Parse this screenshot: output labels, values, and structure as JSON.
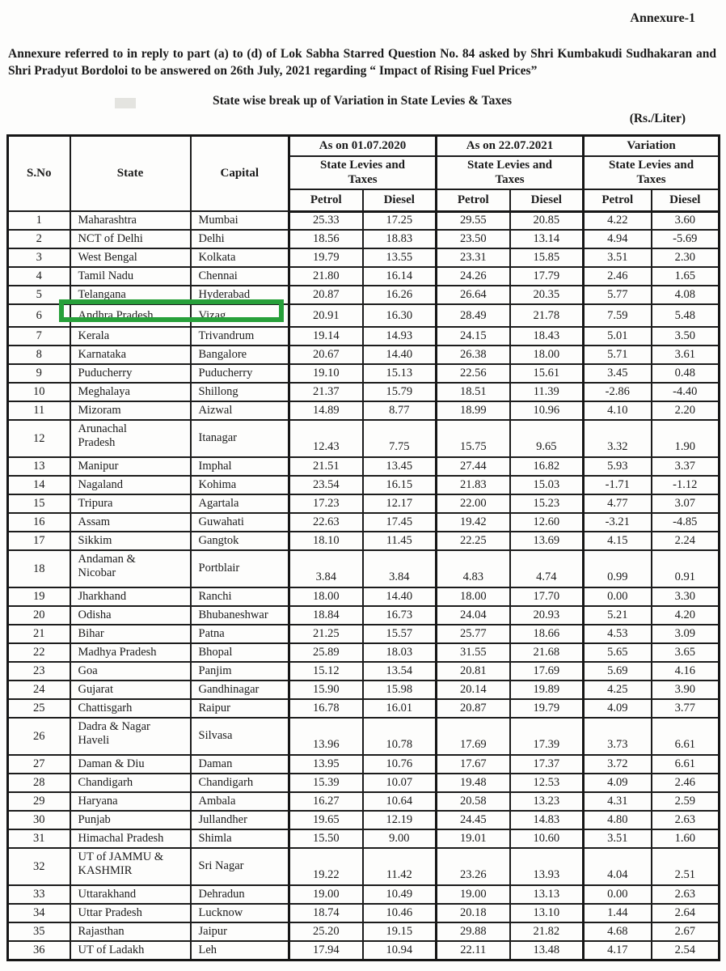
{
  "page": {
    "annexure_label": "Annexure-1",
    "intro": "Annexure referred to in reply to part (a) to (d) of Lok Sabha Starred Question No. 84 asked by Shri Kumbakudi Sudhakaran and Shri Pradyut Bordoloi to be answered on 26th July, 2021 regarding “ Impact of Rising Fuel Prices”",
    "title": "State wise break up of Variation in State Levies & Taxes",
    "unit_label": "(Rs./Liter)"
  },
  "table": {
    "columns": {
      "sno": "S.No",
      "state": "State",
      "capital": "Capital",
      "group_2020": "As on 01.07.2020",
      "group_2021": "As on 22.07.2021",
      "group_variation": "Variation",
      "subheader": "State Levies and\nTaxes",
      "petrol": "Petrol",
      "diesel": "Diesel"
    },
    "highlight": {
      "row_sno": "6",
      "color": "#27a03a"
    },
    "rows": [
      [
        "1",
        "Maharashtra",
        "Mumbai",
        "25.33",
        "17.25",
        "29.55",
        "20.85",
        "4.22",
        "3.60"
      ],
      [
        "2",
        "NCT of Delhi",
        "Delhi",
        "18.56",
        "18.83",
        "23.50",
        "13.14",
        "4.94",
        "-5.69"
      ],
      [
        "3",
        "West Bengal",
        "Kolkata",
        "19.79",
        "13.55",
        "23.31",
        "15.85",
        "3.51",
        "2.30"
      ],
      [
        "4",
        "Tamil Nadu",
        "Chennai",
        "21.80",
        "16.14",
        "24.26",
        "17.79",
        "2.46",
        "1.65"
      ],
      [
        "5",
        "Telangana",
        "Hyderabad",
        "20.87",
        "16.26",
        "26.64",
        "20.35",
        "5.77",
        "4.08"
      ],
      [
        "6",
        "Andhra Pradesh",
        "Vizag",
        "20.91",
        "16.30",
        "28.49",
        "21.78",
        "7.59",
        "5.48"
      ],
      [
        "7",
        "Kerala",
        "Trivandrum",
        "19.14",
        "14.93",
        "24.15",
        "18.43",
        "5.01",
        "3.50"
      ],
      [
        "8",
        "Karnataka",
        "Bangalore",
        "20.67",
        "14.40",
        "26.38",
        "18.00",
        "5.71",
        "3.61"
      ],
      [
        "9",
        "Puducherry",
        "Puducherry",
        "19.10",
        "15.13",
        "22.56",
        "15.61",
        "3.45",
        "0.48"
      ],
      [
        "10",
        "Meghalaya",
        "Shillong",
        "21.37",
        "15.79",
        "18.51",
        "11.39",
        "-2.86",
        "-4.40"
      ],
      [
        "11",
        "Mizoram",
        "Aizwal",
        "14.89",
        "8.77",
        "18.99",
        "10.96",
        "4.10",
        "2.20"
      ],
      [
        "12",
        "Arunachal\nPradesh",
        "Itanagar",
        "12.43",
        "7.75",
        "15.75",
        "9.65",
        "3.32",
        "1.90"
      ],
      [
        "13",
        "Manipur",
        "Imphal",
        "21.51",
        "13.45",
        "27.44",
        "16.82",
        "5.93",
        "3.37"
      ],
      [
        "14",
        "Nagaland",
        "Kohima",
        "23.54",
        "16.15",
        "21.83",
        "15.03",
        "-1.71",
        "-1.12"
      ],
      [
        "15",
        "Tripura",
        "Agartala",
        "17.23",
        "12.17",
        "22.00",
        "15.23",
        "4.77",
        "3.07"
      ],
      [
        "16",
        "Assam",
        "Guwahati",
        "22.63",
        "17.45",
        "19.42",
        "12.60",
        "-3.21",
        "-4.85"
      ],
      [
        "17",
        "Sikkim",
        "Gangtok",
        "18.10",
        "11.45",
        "22.25",
        "13.69",
        "4.15",
        "2.24"
      ],
      [
        "18",
        "Andaman &\nNicobar",
        "Portblair",
        "3.84",
        "3.84",
        "4.83",
        "4.74",
        "0.99",
        "0.91"
      ],
      [
        "19",
        "Jharkhand",
        "Ranchi",
        "18.00",
        "14.40",
        "18.00",
        "17.70",
        "0.00",
        "3.30"
      ],
      [
        "20",
        "Odisha",
        "Bhubaneshwar",
        "18.84",
        "16.73",
        "24.04",
        "20.93",
        "5.21",
        "4.20"
      ],
      [
        "21",
        "Bihar",
        "Patna",
        "21.25",
        "15.57",
        "25.77",
        "18.66",
        "4.53",
        "3.09"
      ],
      [
        "22",
        "Madhya Pradesh",
        "Bhopal",
        "25.89",
        "18.03",
        "31.55",
        "21.68",
        "5.65",
        "3.65"
      ],
      [
        "23",
        "Goa",
        "Panjim",
        "15.12",
        "13.54",
        "20.81",
        "17.69",
        "5.69",
        "4.16"
      ],
      [
        "24",
        "Gujarat",
        "Gandhinagar",
        "15.90",
        "15.98",
        "20.14",
        "19.89",
        "4.25",
        "3.90"
      ],
      [
        "25",
        "Chattisgarh",
        "Raipur",
        "16.78",
        "16.01",
        "20.87",
        "19.79",
        "4.09",
        "3.77"
      ],
      [
        "26",
        "Dadra & Nagar\nHaveli",
        "Silvasa",
        "13.96",
        "10.78",
        "17.69",
        "17.39",
        "3.73",
        "6.61"
      ],
      [
        "27",
        "Daman & Diu",
        "Daman",
        "13.95",
        "10.76",
        "17.67",
        "17.37",
        "3.72",
        "6.61"
      ],
      [
        "28",
        "Chandigarh",
        "Chandigarh",
        "15.39",
        "10.07",
        "19.48",
        "12.53",
        "4.09",
        "2.46"
      ],
      [
        "29",
        "Haryana",
        "Ambala",
        "16.27",
        "10.64",
        "20.58",
        "13.23",
        "4.31",
        "2.59"
      ],
      [
        "30",
        "Punjab",
        "Jullandher",
        "19.65",
        "12.19",
        "24.45",
        "14.83",
        "4.80",
        "2.63"
      ],
      [
        "31",
        "Himachal Pradesh",
        "Shimla",
        "15.50",
        "9.00",
        "19.01",
        "10.60",
        "3.51",
        "1.60"
      ],
      [
        "32",
        "UT of JAMMU &\nKASHMIR",
        "Sri Nagar",
        "19.22",
        "11.42",
        "23.26",
        "13.93",
        "4.04",
        "2.51"
      ],
      [
        "33",
        "Uttarakhand",
        "Dehradun",
        "19.00",
        "10.49",
        "19.00",
        "13.13",
        "0.00",
        "2.63"
      ],
      [
        "34",
        "Uttar Pradesh",
        "Lucknow",
        "18.74",
        "10.46",
        "20.18",
        "13.10",
        "1.44",
        "2.64"
      ],
      [
        "35",
        "Rajasthan",
        "Jaipur",
        "25.20",
        "19.15",
        "29.88",
        "21.82",
        "4.68",
        "2.67"
      ],
      [
        "36",
        "UT of Ladakh",
        "Leh",
        "17.94",
        "10.94",
        "22.11",
        "13.48",
        "4.17",
        "2.54"
      ]
    ]
  }
}
